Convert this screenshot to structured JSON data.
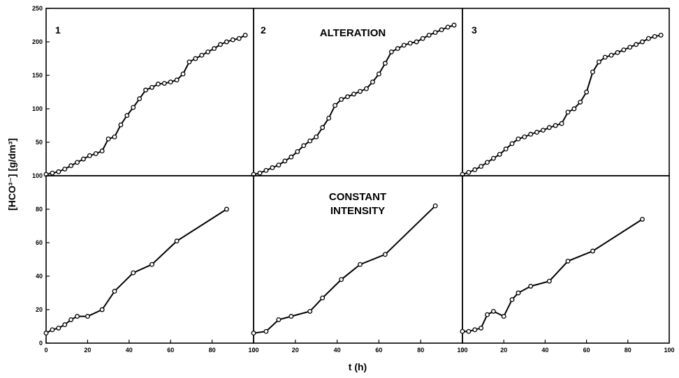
{
  "figure": {
    "xlabel": "t (h)",
    "ylabel": "[HCO³⁻] [g/dm³]",
    "mode_labels": {
      "top": "ALTERATION",
      "bottom_line1": "CONSTANT",
      "bottom_line2": "INTENSITY"
    },
    "panel_numbers": [
      "1",
      "2",
      "3"
    ]
  },
  "chart_data": [
    {
      "type": "line",
      "panel": "1",
      "xlim": [
        0,
        100
      ],
      "ylim": [
        0,
        250
      ],
      "xticks": [],
      "yticks": [
        50,
        100,
        150,
        200,
        250
      ],
      "ytick_labels": [
        "50",
        "100",
        "150",
        "200",
        "250"
      ],
      "series": [
        {
          "x": [
            0,
            3,
            6,
            9,
            12,
            15,
            18,
            21,
            24,
            27,
            30,
            33,
            36,
            39,
            42,
            45,
            48,
            51,
            54,
            57,
            60,
            63,
            66,
            69,
            72,
            75,
            78,
            81,
            84,
            87,
            90,
            93,
            96
          ],
          "y": [
            2,
            4,
            6,
            10,
            15,
            20,
            25,
            30,
            33,
            37,
            55,
            58,
            76,
            90,
            102,
            115,
            128,
            132,
            137,
            138,
            140,
            143,
            152,
            170,
            175,
            180,
            185,
            190,
            196,
            200,
            203,
            205,
            210
          ]
        }
      ]
    },
    {
      "type": "line",
      "panel": "2",
      "xlim": [
        0,
        100
      ],
      "ylim": [
        0,
        250
      ],
      "xticks": [],
      "yticks": [],
      "ytick_labels": [],
      "series": [
        {
          "x": [
            0,
            3,
            6,
            9,
            12,
            15,
            18,
            21,
            24,
            27,
            30,
            33,
            36,
            39,
            42,
            45,
            48,
            51,
            54,
            57,
            60,
            63,
            66,
            69,
            72,
            75,
            78,
            81,
            84,
            87,
            90,
            93,
            96
          ],
          "y": [
            2,
            4,
            8,
            12,
            16,
            22,
            28,
            36,
            45,
            52,
            58,
            72,
            86,
            105,
            114,
            118,
            122,
            126,
            130,
            140,
            152,
            168,
            185,
            190,
            195,
            198,
            200,
            205,
            210,
            214,
            218,
            222,
            225
          ]
        }
      ]
    },
    {
      "type": "line",
      "panel": "3",
      "xlim": [
        0,
        100
      ],
      "ylim": [
        0,
        250
      ],
      "xticks": [],
      "yticks": [],
      "ytick_labels": [],
      "series": [
        {
          "x": [
            0,
            3,
            6,
            9,
            12,
            15,
            18,
            21,
            24,
            27,
            30,
            33,
            36,
            39,
            42,
            45,
            48,
            51,
            54,
            57,
            60,
            63,
            66,
            69,
            72,
            75,
            78,
            81,
            84,
            87,
            90,
            93,
            96
          ],
          "y": [
            2,
            5,
            9,
            14,
            20,
            26,
            32,
            40,
            48,
            55,
            58,
            62,
            65,
            68,
            72,
            75,
            78,
            95,
            100,
            110,
            125,
            155,
            170,
            177,
            180,
            184,
            188,
            192,
            196,
            200,
            205,
            208,
            210
          ]
        }
      ]
    },
    {
      "type": "line",
      "panel": "1",
      "xlim": [
        0,
        100
      ],
      "ylim": [
        0,
        100
      ],
      "xticks": [
        0,
        20,
        40,
        60,
        80,
        100
      ],
      "xtick_labels": [
        "0",
        "20",
        "40",
        "60",
        "80",
        "100"
      ],
      "yticks": [
        0,
        20,
        40,
        60,
        80,
        100
      ],
      "ytick_labels": [
        "0",
        "20",
        "40",
        "60",
        "80",
        "100"
      ],
      "series": [
        {
          "x": [
            0,
            3,
            6,
            9,
            12,
            15,
            20,
            27,
            33,
            42,
            51,
            63,
            87
          ],
          "y": [
            6,
            8,
            9,
            11,
            14,
            16,
            16,
            20,
            31,
            42,
            47,
            61,
            80
          ]
        }
      ]
    },
    {
      "type": "line",
      "panel": "2",
      "xlim": [
        0,
        100
      ],
      "ylim": [
        0,
        100
      ],
      "xticks": [
        0,
        20,
        40,
        60,
        80,
        100
      ],
      "xtick_labels": [
        "0",
        "20",
        "40",
        "60",
        "80",
        "100"
      ],
      "yticks": [],
      "ytick_labels": [],
      "series": [
        {
          "x": [
            0,
            6,
            12,
            18,
            27,
            33,
            42,
            51,
            63,
            87
          ],
          "y": [
            6,
            7,
            14,
            16,
            19,
            27,
            38,
            47,
            53,
            82
          ]
        }
      ]
    },
    {
      "type": "line",
      "panel": "3",
      "xlim": [
        0,
        100
      ],
      "ylim": [
        0,
        100
      ],
      "xticks": [
        0,
        20,
        40,
        60,
        80,
        100
      ],
      "xtick_labels": [
        "0",
        "20",
        "40",
        "60",
        "80",
        "100"
      ],
      "yticks": [],
      "ytick_labels": [],
      "series": [
        {
          "x": [
            0,
            3,
            6,
            9,
            12,
            15,
            20,
            24,
            27,
            33,
            42,
            51,
            63,
            87
          ],
          "y": [
            7,
            7,
            8,
            9,
            17,
            19,
            16,
            26,
            30,
            34,
            37,
            49,
            55,
            74
          ]
        }
      ]
    }
  ]
}
